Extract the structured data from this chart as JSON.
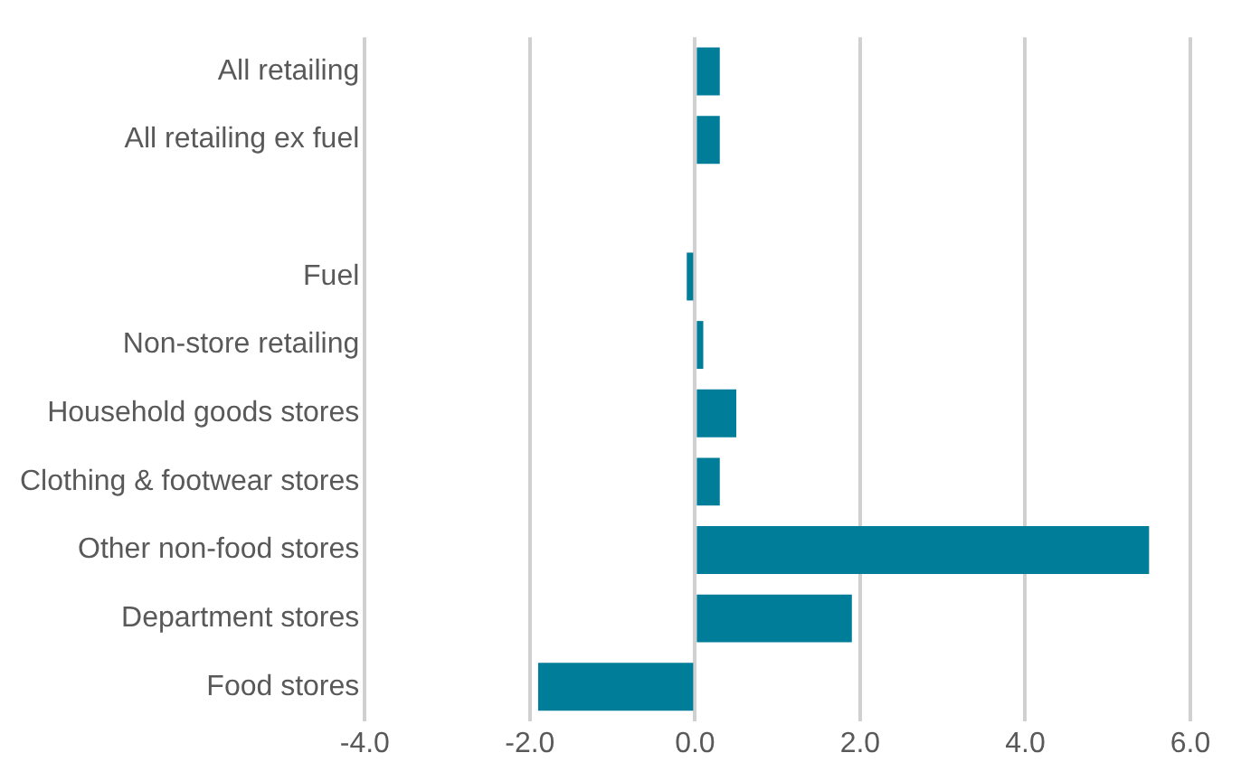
{
  "chart_data": {
    "type": "bar",
    "orientation": "horizontal",
    "categories": [
      "All retailing",
      "All retailing ex fuel",
      null,
      "Fuel",
      "Non-store retailing",
      "Household goods stores",
      "Clothing & footwear stores",
      "Other non-food stores",
      "Department stores",
      "Food stores"
    ],
    "values": [
      0.3,
      0.3,
      null,
      -0.1,
      0.1,
      0.5,
      0.3,
      5.5,
      1.9,
      -1.9
    ],
    "color": "#007d99",
    "xlim": [
      -4,
      6
    ],
    "xticks": [
      {
        "value": -4,
        "label": "-4.0"
      },
      {
        "value": -2,
        "label": "-2.0"
      },
      {
        "value": 0,
        "label": "0.0"
      },
      {
        "value": 2,
        "label": "2.0"
      },
      {
        "value": 4,
        "label": "4.0"
      },
      {
        "value": 6,
        "label": "6.0"
      }
    ],
    "grid": "x",
    "legend": false
  }
}
